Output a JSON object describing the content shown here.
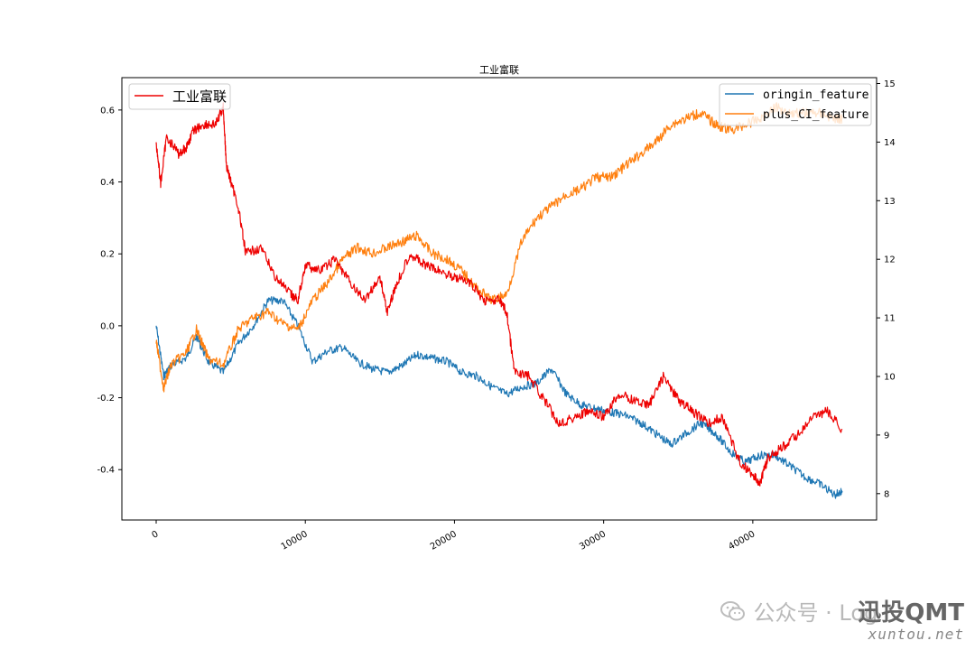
{
  "chart_data": {
    "type": "line",
    "title": "工业富联",
    "xlabel": "",
    "ylabel_left": "",
    "ylabel_right": "",
    "xlim": [
      -2300,
      48300
    ],
    "ylim_left": [
      -0.54,
      0.69
    ],
    "ylim_right": [
      7.55,
      15.1
    ],
    "x_ticks": [
      0,
      10000,
      20000,
      30000,
      40000
    ],
    "x_tick_labels": [
      "0",
      "10000",
      "20000",
      "30000",
      "40000"
    ],
    "y_left_ticks": [
      -0.4,
      -0.2,
      0.0,
      0.2,
      0.4,
      0.6
    ],
    "y_left_tick_labels": [
      "-0.4",
      "-0.2",
      "0.0",
      "0.2",
      "0.4",
      "0.6"
    ],
    "y_right_ticks": [
      8,
      9,
      10,
      11,
      12,
      13,
      14,
      15
    ],
    "y_right_tick_labels": [
      "8",
      "9",
      "10",
      "11",
      "12",
      "13",
      "14",
      "15"
    ],
    "legend_left": {
      "placement": "upper-left",
      "entries": [
        "工业富联"
      ]
    },
    "legend_right": {
      "placement": "upper-right",
      "entries": [
        "oringin_feature",
        "plus_CI_feature"
      ]
    },
    "series": [
      {
        "name": "oringin_feature",
        "axis": "left",
        "color": "#1f77b4",
        "x": [
          0,
          500,
          1000,
          2000,
          2700,
          3500,
          4500,
          5500,
          6500,
          7500,
          8500,
          9500,
          10500,
          11500,
          12500,
          13500,
          14500,
          15500,
          16500,
          17500,
          18500,
          19500,
          20500,
          21500,
          22500,
          23500,
          24500,
          25500,
          26500,
          27500,
          28500,
          29500,
          30500,
          31500,
          32500,
          33500,
          34500,
          35500,
          36500,
          37500,
          38500,
          39500,
          40500,
          41500,
          42500,
          43500,
          44500,
          45500,
          46000
        ],
        "y": [
          0.0,
          -0.14,
          -0.11,
          -0.09,
          -0.03,
          -0.1,
          -0.13,
          -0.05,
          -0.0,
          0.07,
          0.07,
          0.0,
          -0.1,
          -0.07,
          -0.06,
          -0.1,
          -0.12,
          -0.13,
          -0.11,
          -0.08,
          -0.09,
          -0.1,
          -0.13,
          -0.14,
          -0.17,
          -0.19,
          -0.17,
          -0.16,
          -0.12,
          -0.19,
          -0.22,
          -0.23,
          -0.24,
          -0.25,
          -0.27,
          -0.3,
          -0.33,
          -0.3,
          -0.27,
          -0.3,
          -0.35,
          -0.38,
          -0.36,
          -0.36,
          -0.39,
          -0.42,
          -0.44,
          -0.47,
          -0.46
        ]
      },
      {
        "name": "plus_CI_feature",
        "axis": "right",
        "color": "#ff7f0e",
        "x": [
          0,
          500,
          1000,
          2000,
          2700,
          3500,
          4500,
          5500,
          6500,
          7500,
          8500,
          9500,
          10500,
          11500,
          12500,
          13500,
          14500,
          15500,
          16500,
          17500,
          18500,
          19500,
          20500,
          21500,
          22500,
          23500,
          24500,
          25500,
          26500,
          27500,
          28500,
          29500,
          30500,
          31500,
          32500,
          33500,
          34500,
          35500,
          36500,
          37500,
          38500,
          39500,
          40500,
          41500,
          42500,
          43500,
          44500,
          45500,
          46000
        ],
        "y": [
          10.6,
          9.8,
          10.2,
          10.4,
          10.8,
          10.3,
          10.2,
          10.8,
          11.0,
          11.1,
          10.9,
          10.8,
          11.3,
          11.6,
          12.0,
          12.2,
          12.1,
          12.2,
          12.3,
          12.4,
          12.1,
          12.0,
          11.8,
          11.5,
          11.3,
          11.4,
          12.3,
          12.7,
          12.9,
          13.1,
          13.2,
          13.4,
          13.4,
          13.6,
          13.8,
          14.0,
          14.3,
          14.4,
          14.5,
          14.3,
          14.2,
          14.3,
          14.4,
          14.6,
          14.5,
          14.5,
          14.5,
          14.4,
          14.4
        ]
      },
      {
        "name": "工业富联",
        "axis": "right",
        "color": "#ee0000",
        "x": [
          0,
          300,
          700,
          1500,
          2000,
          2500,
          3200,
          4000,
          4500,
          4700,
          5500,
          6000,
          7000,
          8000,
          9000,
          9500,
          10000,
          11000,
          12000,
          13000,
          14000,
          15000,
          15500,
          16000,
          17000,
          18000,
          19000,
          20000,
          21000,
          22000,
          23000,
          23500,
          24000,
          25000,
          26000,
          27000,
          28000,
          29000,
          30000,
          31000,
          32000,
          33000,
          34000,
          35000,
          36000,
          37000,
          38000,
          39000,
          40000,
          40500,
          41000,
          42000,
          43000,
          44000,
          45000,
          46000
        ],
        "y": [
          14.0,
          13.3,
          14.1,
          13.8,
          13.9,
          14.2,
          14.3,
          14.3,
          14.6,
          13.6,
          12.9,
          12.1,
          12.2,
          11.7,
          11.4,
          11.3,
          11.9,
          11.8,
          12.0,
          11.6,
          11.3,
          11.7,
          11.1,
          11.5,
          12.1,
          11.9,
          11.8,
          11.7,
          11.6,
          11.3,
          11.3,
          11.1,
          10.1,
          10.0,
          9.6,
          9.2,
          9.3,
          9.4,
          9.3,
          9.7,
          9.6,
          9.5,
          10.0,
          9.6,
          9.4,
          9.2,
          9.3,
          8.6,
          8.3,
          8.2,
          8.6,
          8.8,
          9.0,
          9.3,
          9.4,
          9.1
        ]
      }
    ]
  },
  "watermark": {
    "channel": "公众号 · Log",
    "brand": "迅投QMT",
    "url": "xuntou.net"
  },
  "icons": {
    "watermark_icon": "wechat-icon"
  }
}
